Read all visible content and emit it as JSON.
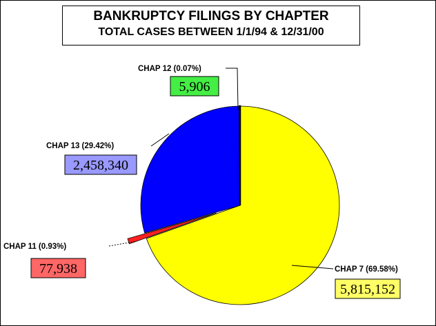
{
  "chart_data": {
    "type": "pie",
    "title": "BANKRUPTCY FILINGS BY CHAPTER",
    "subtitle": "TOTAL CASES BETWEEN 1/1/94 & 12/31/00",
    "categories": [
      "CHAP 7",
      "CHAP 11",
      "CHAP 13",
      "CHAP 12"
    ],
    "percent_labels": [
      "CHAP 7 (69.58%)",
      "CHAP 11 (0.93%)",
      "CHAP 13 (29.42%)",
      "CHAP 12 (0.07%)"
    ],
    "values": [
      5815152,
      77938,
      2458340,
      5906
    ],
    "value_labels": [
      "5,815,152",
      "77,938",
      "2,458,340",
      "5,906"
    ],
    "percents": [
      69.58,
      0.93,
      29.42,
      0.07
    ],
    "colors": [
      "#ffff00",
      "#ff2020",
      "#0000ff",
      "#111111"
    ],
    "box_colors": [
      "#ffff66",
      "#ff6666",
      "#9999ff",
      "#44ee44"
    ],
    "exploded": [
      "CHAP 11"
    ],
    "start_angle_deg": 0,
    "direction": "clockwise",
    "legend": "none"
  }
}
